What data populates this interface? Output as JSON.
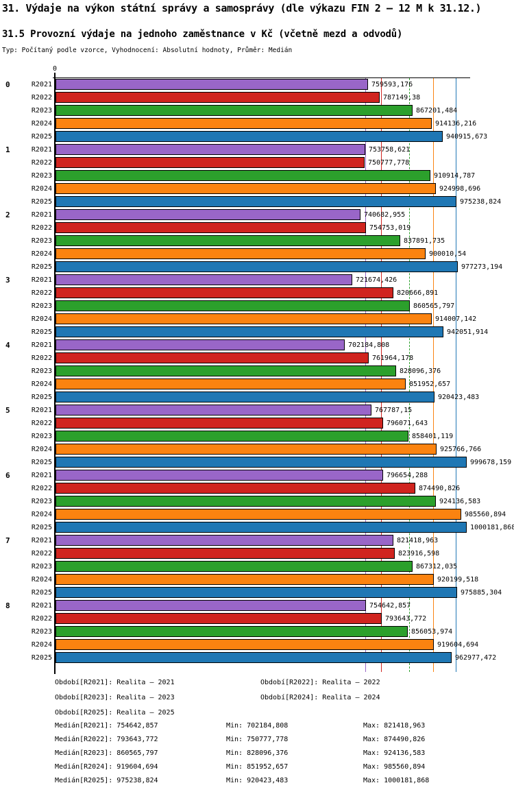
{
  "header": {
    "title": "31. Výdaje na výkon státní správy a samosprávy (dle výkazu FIN 2 – 12 M k 31.12.)",
    "subtitle": "31.5 Provozní výdaje na jednoho zaměstnance v Kč (včetně mezd a odvodů)",
    "meta": "Typ: Počítaný podle vzorce, Vyhodnocení: Absolutní hodnoty, Průměr: Medián"
  },
  "chart_data": {
    "type": "bar",
    "orientation": "horizontal",
    "grid": "off",
    "x_axis": {
      "zero_label": "0",
      "implied_max": 1016000,
      "value_unit": "Kč"
    },
    "categories": [
      "0",
      "1",
      "2",
      "3",
      "4",
      "5",
      "6",
      "7",
      "8"
    ],
    "series": [
      {
        "name": "R2021",
        "color": "#9966c8",
        "median": 754642.857,
        "median_line_style": "solid",
        "values": [
          759593.176,
          753758.621,
          740682.955,
          721674.426,
          702184.808,
          767787.15,
          796654.288,
          821418.963,
          754642.857
        ]
      },
      {
        "name": "R2022",
        "color": "#d0241f",
        "median": 793643.772,
        "median_line_style": "solid",
        "values": [
          787149.38,
          750777.778,
          754753.019,
          820666.891,
          761964.178,
          796071.643,
          874490.826,
          823916.598,
          793643.772
        ]
      },
      {
        "name": "R2023",
        "color": "#2ca02c",
        "median": 860565.797,
        "median_line_style": "dashed",
        "values": [
          867201.484,
          910914.787,
          837891.735,
          860565.797,
          828096.376,
          858401.119,
          924136.583,
          867312.035,
          856053.974
        ]
      },
      {
        "name": "R2024",
        "color": "#fb8310",
        "median": 919604.694,
        "median_line_style": "solid",
        "values": [
          914136.216,
          924998.696,
          900010.54,
          914007.142,
          851952.657,
          925766.766,
          985560.894,
          920199.518,
          919604.694
        ]
      },
      {
        "name": "R2025",
        "color": "#1f77b4",
        "median": 975238.824,
        "median_line_style": "solid",
        "values": [
          940915.673,
          975238.824,
          977273.194,
          942051.914,
          920423.483,
          999678.159,
          1000181.868,
          975885.304,
          962977.472
        ]
      }
    ]
  },
  "legend": {
    "rows": [
      {
        "left": "Období[R2021]: Realita – 2021",
        "right": "Období[R2022]: Realita – 2022"
      },
      {
        "left": "Období[R2023]: Realita – 2023",
        "right": "Období[R2024]: Realita – 2024"
      },
      {
        "left": "Období[R2025]: Realita – 2025",
        "right": ""
      }
    ]
  },
  "stats": {
    "rows": [
      {
        "median": "Medián[R2021]: 754642,857",
        "min": "Min: 702184,808",
        "max": "Max: 821418,963"
      },
      {
        "median": "Medián[R2022]: 793643,772",
        "min": "Min: 750777,778",
        "max": "Max: 874490,826"
      },
      {
        "median": "Medián[R2023]: 860565,797",
        "min": "Min: 828096,376",
        "max": "Max: 924136,583"
      },
      {
        "median": "Medián[R2024]: 919604,694",
        "min": "Min: 851952,657",
        "max": "Max: 985560,894"
      },
      {
        "median": "Medián[R2025]: 975238,824",
        "min": "Min: 920423,483",
        "max": "Max: 1000181,868"
      }
    ]
  }
}
